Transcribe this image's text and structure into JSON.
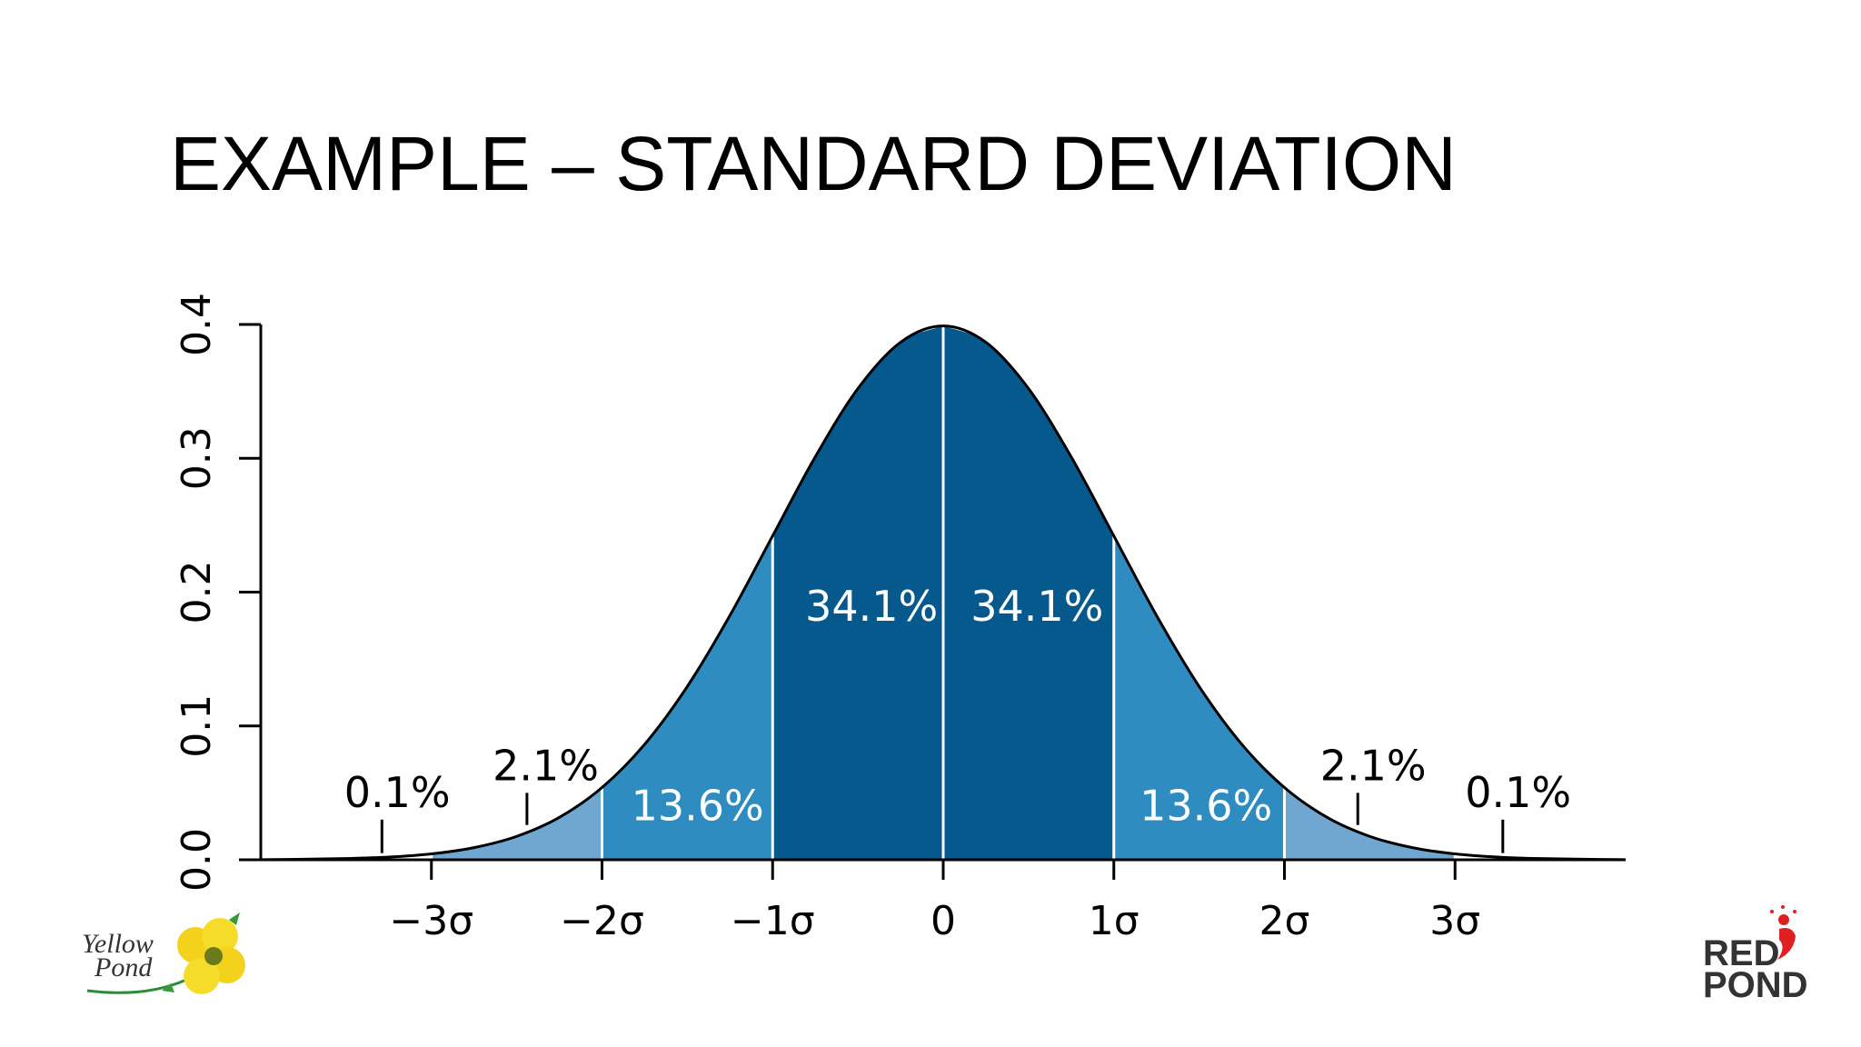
{
  "chart_data": {
    "type": "area",
    "title": "EXAMPLE – STANDARD DEVIATION",
    "x": [
      -4,
      -3.75,
      -3.5,
      -3.25,
      -3,
      -2.75,
      -2.5,
      -2.25,
      -2,
      -1.75,
      -1.5,
      -1.25,
      -1,
      -0.75,
      -0.5,
      -0.25,
      0,
      0.25,
      0.5,
      0.75,
      1,
      1.25,
      1.5,
      1.75,
      2,
      2.25,
      2.5,
      2.75,
      3,
      3.25,
      3.5,
      3.75,
      4
    ],
    "values": [
      0.0001,
      0.0004,
      0.0009,
      0.002,
      0.0044,
      0.0091,
      0.0175,
      0.0317,
      0.054,
      0.0863,
      0.1295,
      0.1826,
      0.242,
      0.3011,
      0.3521,
      0.3867,
      0.3989,
      0.3867,
      0.3521,
      0.3011,
      0.242,
      0.1826,
      0.1295,
      0.0863,
      0.054,
      0.0317,
      0.0175,
      0.0091,
      0.0044,
      0.002,
      0.0009,
      0.0004,
      0.0001
    ],
    "line_color": "#000000",
    "bands": {
      "edges": [
        -4,
        -3,
        -2,
        -1,
        0,
        1,
        2,
        3,
        4
      ],
      "values": [
        0.1,
        2.1,
        13.6,
        34.1,
        34.1,
        13.6,
        2.1,
        0.1
      ],
      "value_labels": [
        "0.1%",
        "2.1%",
        "13.6%",
        "34.1%",
        "34.1%",
        "13.6%",
        "2.1%",
        "0.1%"
      ],
      "colors": [
        "#ffffff",
        "#6fa7d1",
        "#2f8cc1",
        "#05598c",
        "#05598c",
        "#2f8cc1",
        "#6fa7d1",
        "#ffffff"
      ]
    },
    "xlim": [
      -4,
      4
    ],
    "xticks": [
      {
        "value": -3,
        "label": "−3σ"
      },
      {
        "value": -2,
        "label": "−2σ"
      },
      {
        "value": -1,
        "label": "−1σ"
      },
      0,
      {
        "value": 1,
        "label": "1σ"
      },
      {
        "value": 2,
        "label": "2σ"
      },
      {
        "value": 3,
        "label": "3σ"
      }
    ],
    "ylim": [
      0,
      0.4
    ],
    "yticks": [
      {
        "value": 0,
        "label": "0.0"
      },
      0.1,
      0.2,
      0.3,
      0.4
    ],
    "grid": false
  },
  "logos": {
    "left": [
      "Yellow",
      "Pond"
    ],
    "right": [
      "RED",
      "POND"
    ]
  }
}
